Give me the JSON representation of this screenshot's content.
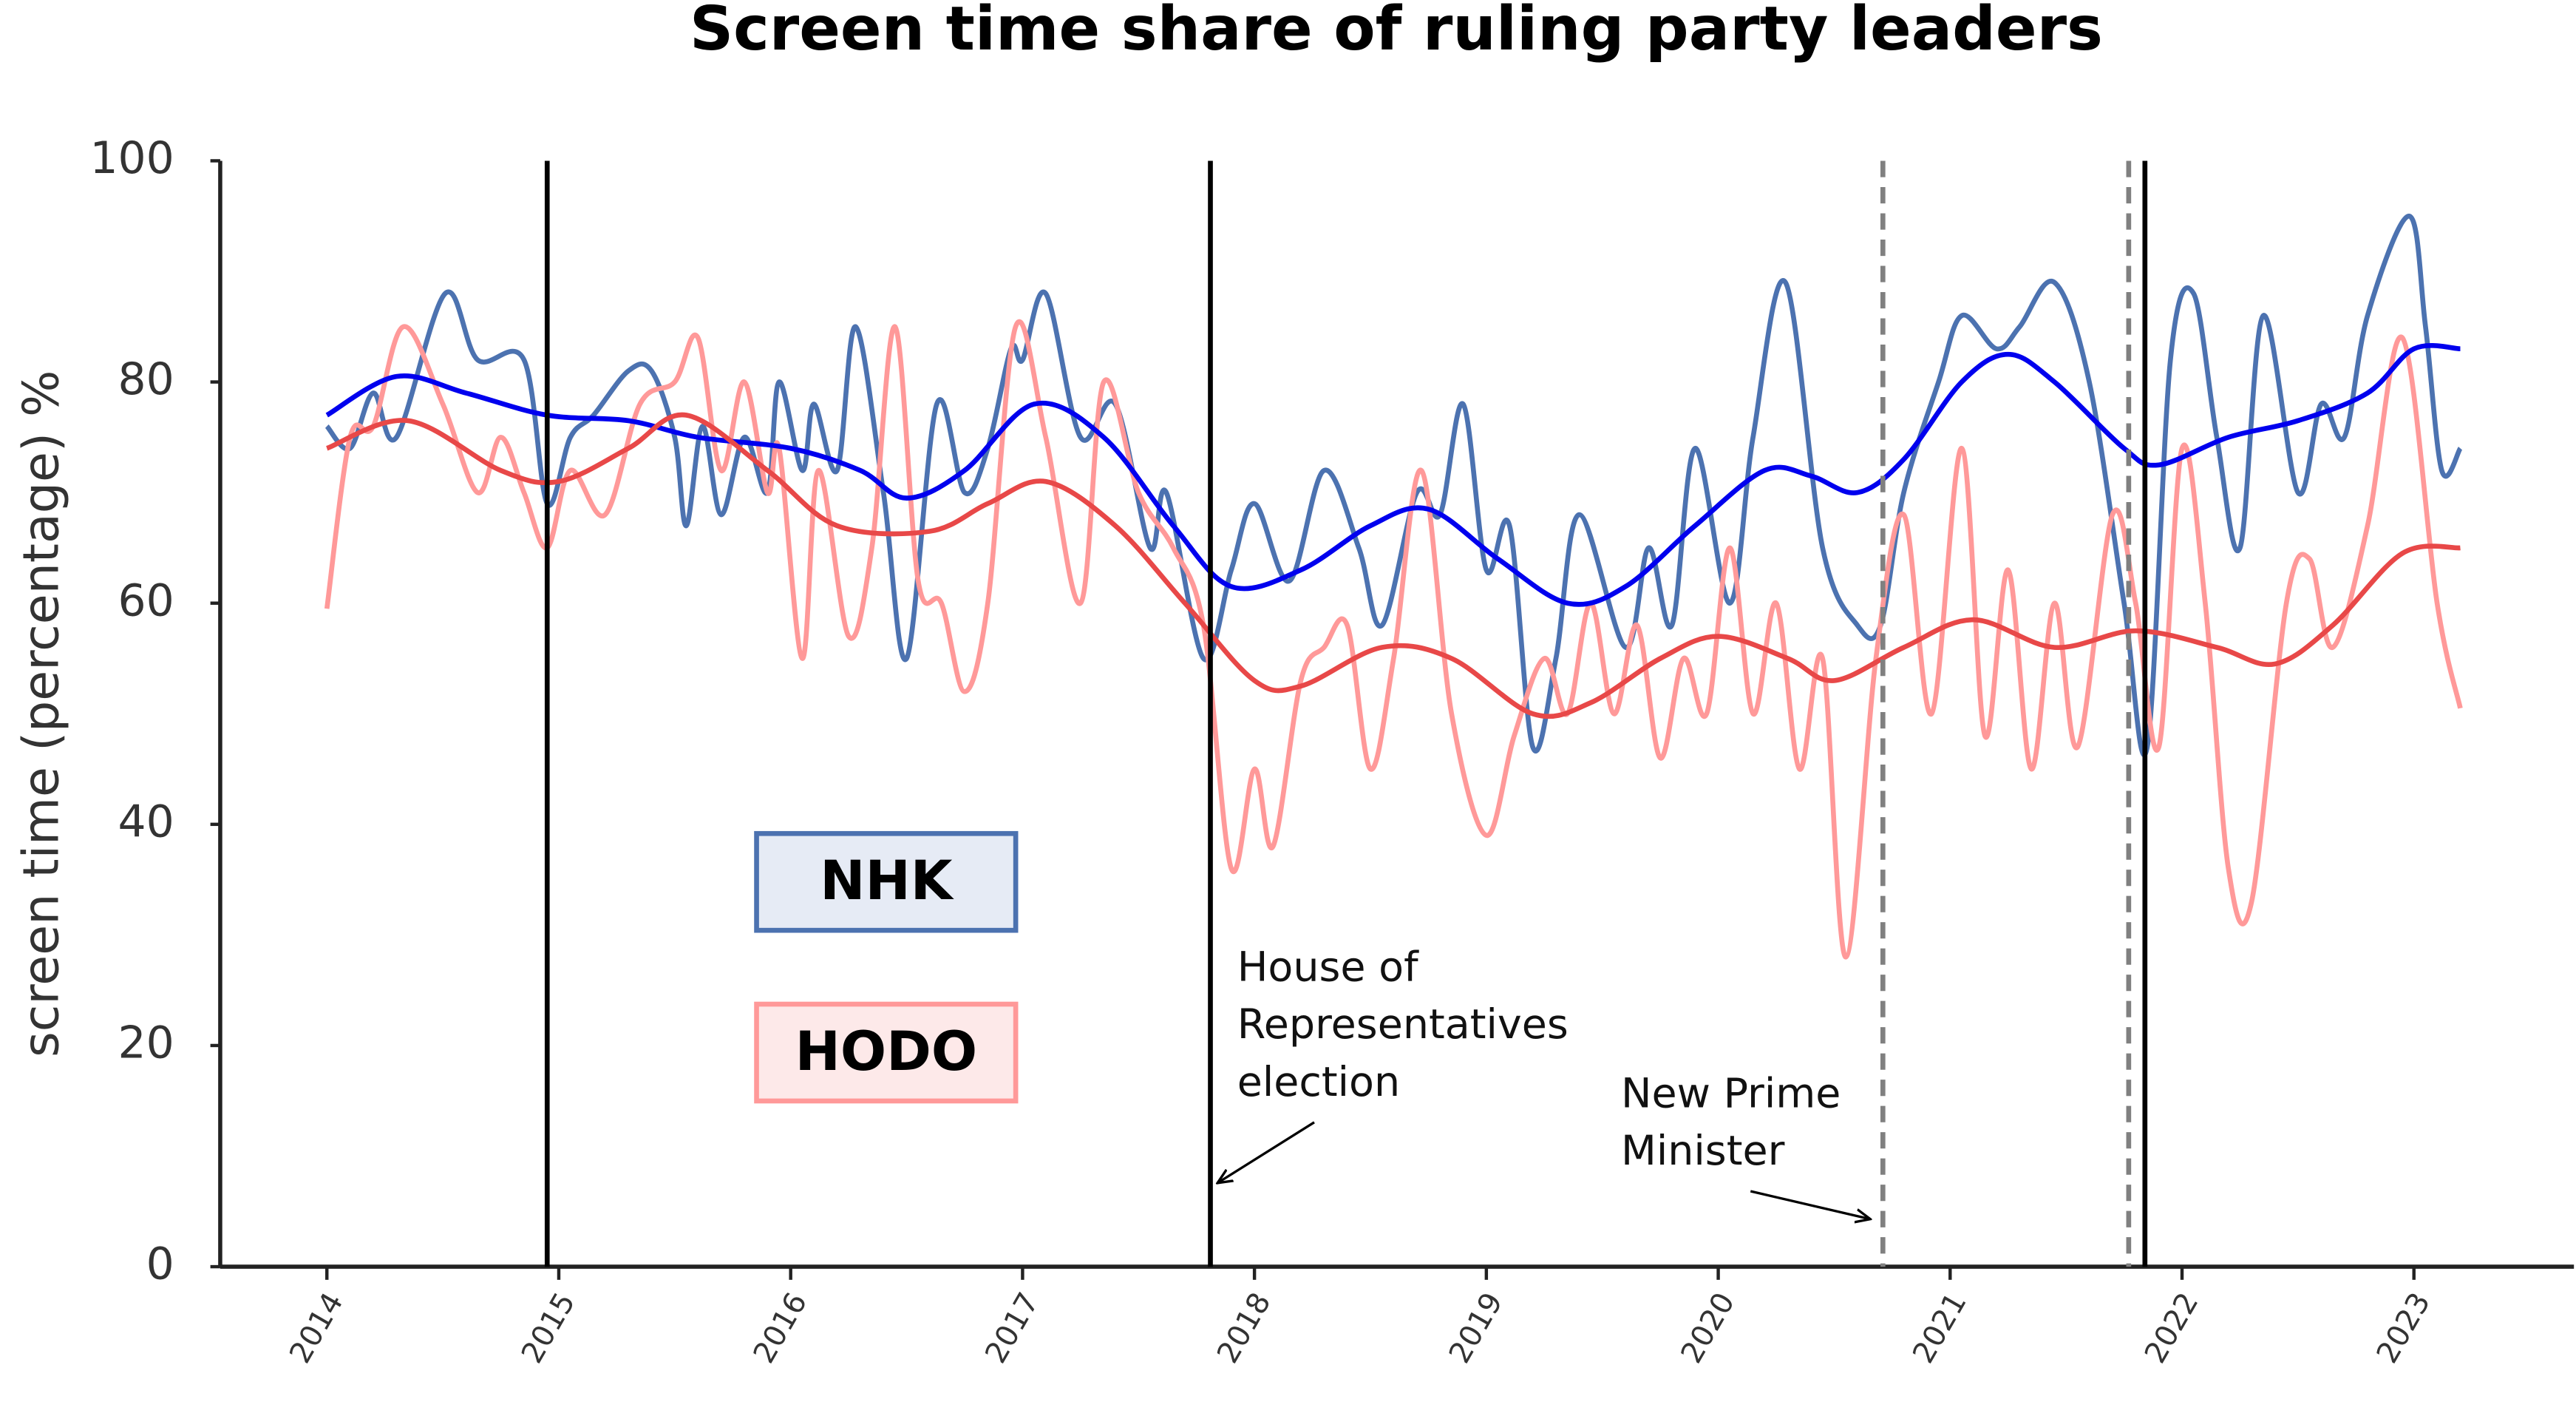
{
  "chart_data": {
    "type": "line",
    "title": "Screen time share of ruling party leaders",
    "y_label": "screen time (percentage) %",
    "xlim": [
      2013.54,
      2023.69
    ],
    "xticks": [
      2014,
      2015,
      2016,
      2017,
      2018,
      2019,
      2020,
      2021,
      2022,
      2023
    ],
    "ylim": [
      0,
      100
    ],
    "yticks": [
      0,
      20,
      40,
      60,
      80,
      100
    ],
    "grid": false,
    "series": [
      {
        "name": "NHK",
        "color": "#4c72b0",
        "x": [
          2014.0,
          2014.1,
          2014.2,
          2014.3,
          2014.51,
          2014.65,
          2014.85,
          2014.95,
          2015.05,
          2015.15,
          2015.3,
          2015.4,
          2015.5,
          2015.55,
          2015.62,
          2015.7,
          2015.8,
          2015.9,
          2015.95,
          2016.05,
          2016.1,
          2016.2,
          2016.28,
          2016.4,
          2016.5,
          2016.63,
          2016.75,
          2016.85,
          2016.95,
          2017.0,
          2017.1,
          2017.25,
          2017.4,
          2017.55,
          2017.62,
          2017.78,
          2017.9,
          2018.0,
          2018.15,
          2018.3,
          2018.45,
          2018.55,
          2018.7,
          2018.8,
          2018.9,
          2019.0,
          2019.1,
          2019.2,
          2019.3,
          2019.4,
          2019.6,
          2019.7,
          2019.8,
          2019.9,
          2020.05,
          2020.15,
          2020.29,
          2020.45,
          2020.6,
          2020.7,
          2020.8,
          2020.95,
          2021.05,
          2021.2,
          2021.3,
          2021.45,
          2021.6,
          2021.75,
          2021.85,
          2021.95,
          2022.05,
          2022.15,
          2022.25,
          2022.35,
          2022.5,
          2022.6,
          2022.7,
          2022.8,
          2022.98,
          2023.05,
          2023.12,
          2023.2
        ],
        "values": [
          76,
          74,
          79,
          75,
          88,
          82,
          82,
          69,
          75,
          77,
          81,
          81,
          75,
          67,
          76,
          68,
          75,
          70,
          80,
          72,
          78,
          72,
          85,
          70,
          55,
          78,
          70,
          74,
          83,
          82,
          88,
          75,
          78,
          65,
          70,
          55,
          63,
          69,
          62,
          72,
          65,
          58,
          70,
          68,
          78,
          63,
          67,
          47,
          55,
          68,
          56,
          65,
          58,
          74,
          60,
          75,
          89,
          65,
          58,
          58,
          70,
          80,
          86,
          83,
          85,
          89,
          80,
          60,
          47,
          82,
          88,
          75,
          65,
          86,
          70,
          78,
          75,
          86,
          95,
          85,
          72,
          74
        ]
      },
      {
        "name": "HODO",
        "color": "#ff9999",
        "x": [
          2014.0,
          2014.1,
          2014.2,
          2014.33,
          2014.5,
          2014.65,
          2014.75,
          2014.85,
          2014.95,
          2015.05,
          2015.2,
          2015.35,
          2015.5,
          2015.6,
          2015.7,
          2015.8,
          2015.9,
          2015.95,
          2016.05,
          2016.12,
          2016.25,
          2016.35,
          2016.45,
          2016.55,
          2016.65,
          2016.75,
          2016.85,
          2016.97,
          2017.1,
          2017.25,
          2017.35,
          2017.5,
          2017.65,
          2017.78,
          2017.9,
          2018.0,
          2018.08,
          2018.2,
          2018.3,
          2018.4,
          2018.5,
          2018.6,
          2018.72,
          2018.85,
          2019.0,
          2019.12,
          2019.25,
          2019.35,
          2019.45,
          2019.55,
          2019.65,
          2019.75,
          2019.85,
          2019.95,
          2020.05,
          2020.15,
          2020.25,
          2020.35,
          2020.45,
          2020.55,
          2020.68,
          2020.8,
          2020.92,
          2021.05,
          2021.15,
          2021.25,
          2021.35,
          2021.45,
          2021.55,
          2021.7,
          2021.8,
          2021.9,
          2022.0,
          2022.1,
          2022.2,
          2022.3,
          2022.45,
          2022.55,
          2022.65,
          2022.8,
          2022.95,
          2023.1,
          2023.2
        ],
        "values": [
          59.5,
          75,
          76,
          85,
          78,
          70,
          75,
          70,
          65,
          72,
          68,
          78,
          80,
          84,
          72,
          80,
          70,
          74,
          55,
          72,
          57,
          65,
          85,
          62,
          60,
          52,
          60,
          85,
          75,
          60,
          80,
          70,
          65,
          58,
          36,
          45,
          38,
          53,
          56,
          58,
          45,
          55,
          72,
          50,
          39,
          48,
          55,
          50,
          60,
          50,
          58,
          46,
          55,
          50,
          65,
          50,
          60,
          45,
          55,
          28,
          55,
          68,
          50,
          74,
          48,
          63,
          45,
          60,
          47,
          68,
          60,
          47,
          74,
          60,
          36,
          33,
          60,
          64,
          56,
          67,
          84,
          60,
          50.5
        ]
      },
      {
        "color": "#0000ee",
        "x": [
          2014.0,
          2014.3,
          2014.6,
          2014.95,
          2015.3,
          2015.6,
          2016.0,
          2016.3,
          2016.5,
          2016.75,
          2017.05,
          2017.35,
          2017.65,
          2017.9,
          2018.2,
          2018.5,
          2018.75,
          2019.05,
          2019.35,
          2019.6,
          2019.9,
          2020.2,
          2020.4,
          2020.6,
          2020.8,
          2021.05,
          2021.25,
          2021.45,
          2021.75,
          2021.9,
          2022.2,
          2022.5,
          2022.8,
          2023.0,
          2023.2
        ],
        "values": [
          77,
          80.5,
          79,
          77,
          76.5,
          75,
          74,
          72,
          69.5,
          72,
          78,
          75,
          67,
          61.5,
          63,
          67,
          68.5,
          64,
          60,
          61.5,
          67,
          72,
          71.5,
          70,
          73,
          80,
          82.5,
          80,
          74,
          72.5,
          75,
          76.5,
          79,
          83,
          83
        ]
      },
      {
        "color": "#e84848",
        "x": [
          2014.0,
          2014.35,
          2014.75,
          2015.0,
          2015.3,
          2015.55,
          2015.9,
          2016.2,
          2016.6,
          2016.85,
          2017.1,
          2017.4,
          2017.7,
          2018.0,
          2018.2,
          2018.55,
          2018.85,
          2019.2,
          2019.45,
          2019.75,
          2020.0,
          2020.3,
          2020.5,
          2020.8,
          2021.1,
          2021.45,
          2021.8,
          2022.15,
          2022.4,
          2022.65,
          2022.95,
          2023.2
        ],
        "values": [
          74,
          76.5,
          72,
          71,
          74,
          77,
          72,
          67,
          66.5,
          69,
          71,
          67,
          60,
          53,
          52.5,
          56,
          55,
          50,
          51,
          55,
          57,
          55,
          53,
          56,
          58.5,
          56,
          57.5,
          56,
          54.5,
          58,
          64.5,
          65
        ]
      }
    ],
    "vlines": [
      {
        "x": 2014.95,
        "color": "#000000",
        "dash": false
      },
      {
        "x": 2017.81,
        "color": "#000000",
        "dash": false
      },
      {
        "x": 2020.71,
        "color": "#808080",
        "dash": true
      },
      {
        "x": 2021.77,
        "color": "#808080",
        "dash": true
      },
      {
        "x": 2021.84,
        "color": "#000000",
        "dash": false
      }
    ],
    "annotations": [
      {
        "lines": [
          "House of",
          "Representatives",
          "election"
        ]
      },
      {
        "lines": [
          "New Prime",
          "Minister"
        ]
      }
    ]
  }
}
